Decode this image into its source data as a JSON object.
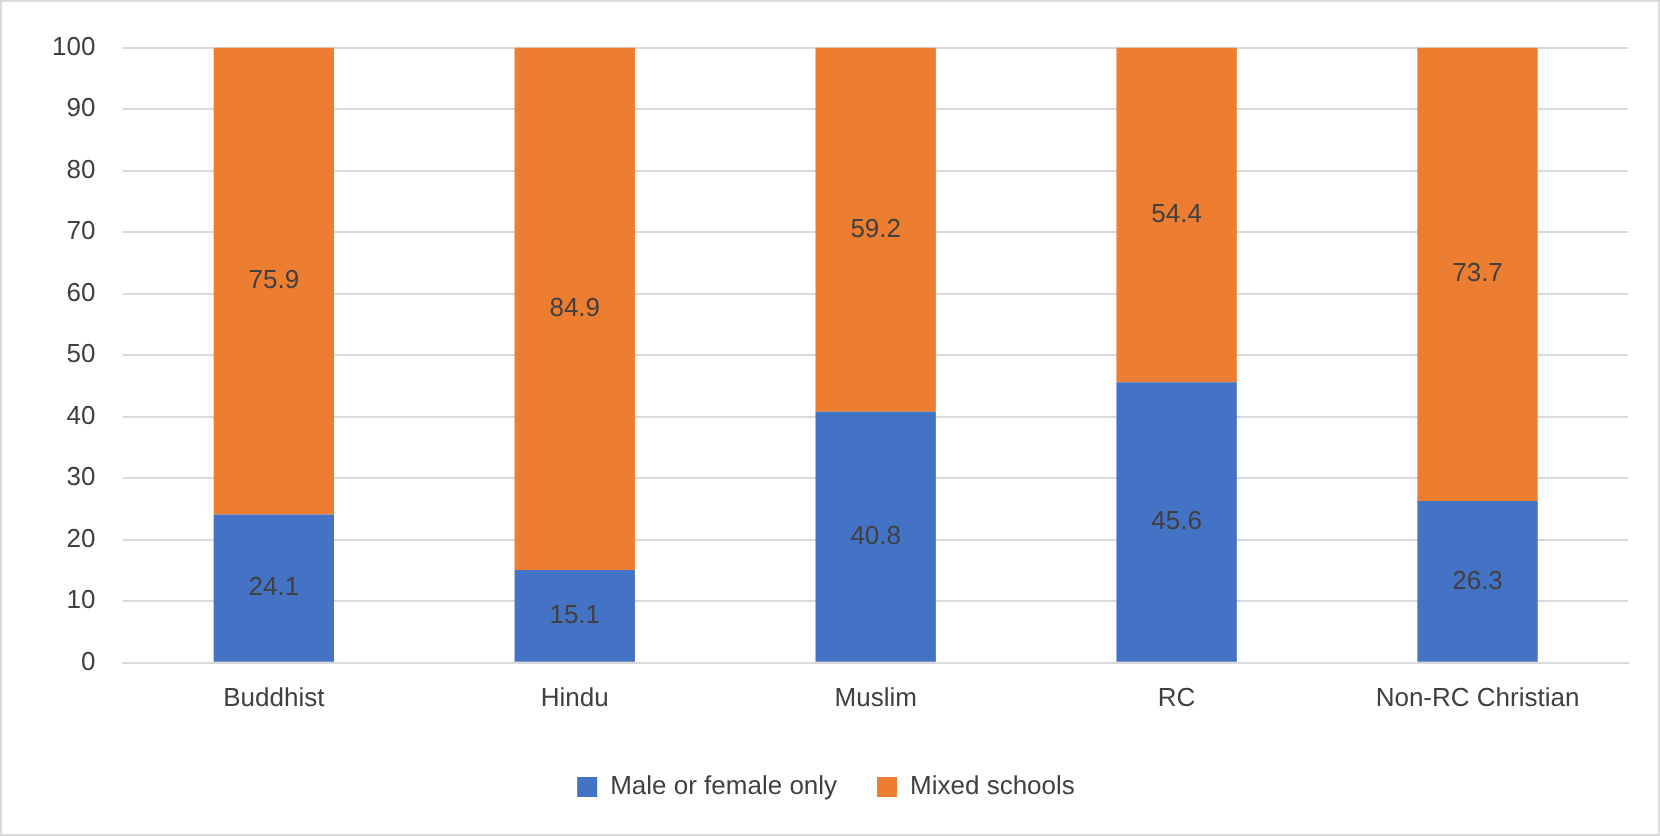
{
  "chart_data": {
    "type": "bar",
    "stacked": true,
    "categories": [
      "Buddhist",
      "Hindu",
      "Muslim",
      "RC",
      "Non-RC Christian"
    ],
    "series": [
      {
        "name": "Male or female only",
        "color": "#4472c4",
        "values": [
          24.1,
          15.1,
          40.8,
          45.6,
          26.3
        ]
      },
      {
        "name": "Mixed schools",
        "color": "#ed7d31",
        "values": [
          75.9,
          84.9,
          59.2,
          54.4,
          73.7
        ]
      }
    ],
    "ylim": [
      0,
      100
    ],
    "yticks": [
      0,
      10,
      20,
      30,
      40,
      50,
      60,
      70,
      80,
      90,
      100
    ],
    "grid": "y",
    "legend": "bottom",
    "data_labels": true
  }
}
